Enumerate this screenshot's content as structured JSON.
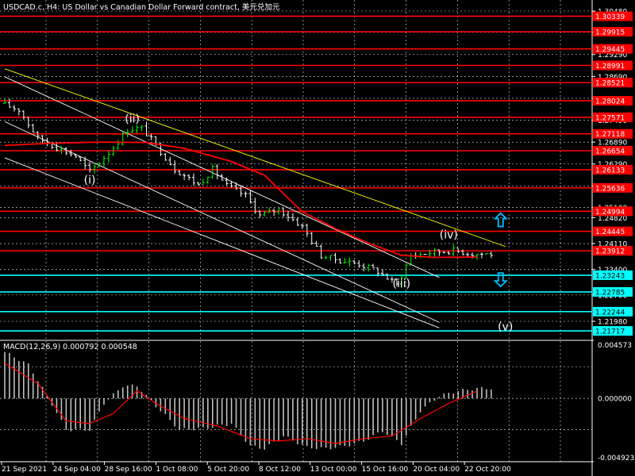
{
  "window": {
    "title": "USDCAD.c, H4:  US Dollar vs Canadian Dollar Forward contract, 美元兑加元"
  },
  "colors": {
    "background": "#000000",
    "grid": "#ffffff",
    "bull_bar": "#00ff00",
    "bear_bar": "#ffffff",
    "ma_line": "#ff0000",
    "level_red": "#ff0000",
    "level_cyan": "#00ffff",
    "channel": "#ffffff",
    "trendline": "#ffff00",
    "macd_hist": "#c0c0c0",
    "macd_signal": "#ff0000",
    "arrow": "#00bfff",
    "text": "#ffffff"
  },
  "chart_data": [
    {
      "type": "candlestick",
      "ylim": [
        1.2148,
        1.3048
      ],
      "y_ticks": [
        "1.30480",
        "1.29900",
        "1.29290",
        "1.28690",
        "1.28090",
        "1.27490",
        "1.26890",
        "1.26290",
        "1.25690",
        "1.25100",
        "1.24820",
        "1.24110",
        "1.23400",
        "1.22700",
        "1.21980"
      ],
      "price_levels": [
        {
          "label": "1.30339",
          "value": 1.30339,
          "color": "red"
        },
        {
          "label": "1.29915",
          "value": 1.29915,
          "color": "red"
        },
        {
          "label": "1.29445",
          "value": 1.29445,
          "color": "red"
        },
        {
          "label": "1.28991",
          "value": 1.28991,
          "color": "red"
        },
        {
          "label": "1.28521",
          "value": 1.28521,
          "color": "red"
        },
        {
          "label": "1.28024",
          "value": 1.28024,
          "color": "red"
        },
        {
          "label": "1.27571",
          "value": 1.27571,
          "color": "red"
        },
        {
          "label": "1.27118",
          "value": 1.27118,
          "color": "red"
        },
        {
          "label": "1.26654",
          "value": 1.26654,
          "color": "red"
        },
        {
          "label": "1.26133",
          "value": 1.26133,
          "color": "red"
        },
        {
          "label": "1.25636",
          "value": 1.25636,
          "color": "red"
        },
        {
          "label": "1.24994",
          "value": 1.24994,
          "color": "red"
        },
        {
          "label": "1.24445",
          "value": 1.24445,
          "color": "red"
        },
        {
          "label": "1.23912",
          "value": 1.23912,
          "color": "red"
        },
        {
          "label": "1.23243",
          "value": 1.23243,
          "color": "cyan"
        },
        {
          "label": "1.22785",
          "value": 1.22785,
          "color": "cyan"
        },
        {
          "label": "1.22244",
          "value": 1.22244,
          "color": "cyan"
        },
        {
          "label": "1.21717",
          "value": 1.21717,
          "color": "cyan"
        }
      ],
      "wave_labels": [
        {
          "label": "(i)",
          "bar": 18,
          "price": 1.2575
        },
        {
          "label": "(ii)",
          "bar": 27,
          "price": 1.2743
        },
        {
          "label": "(iii)",
          "bar": 84,
          "price": 1.2291
        },
        {
          "label": "(iv)",
          "bar": 94,
          "price": 1.2425
        },
        {
          "label": "(v)",
          "bar": 106,
          "price": 1.2173
        }
      ],
      "ma_path": [
        [
          0,
          1.268
        ],
        [
          10,
          1.2686
        ],
        [
          20,
          1.2689
        ],
        [
          30,
          1.2688
        ],
        [
          38,
          1.2672
        ],
        [
          48,
          1.2636
        ],
        [
          55,
          1.2598
        ],
        [
          63,
          1.2498
        ],
        [
          70,
          1.2452
        ],
        [
          77,
          1.2412
        ],
        [
          84,
          1.2379
        ],
        [
          91,
          1.2373
        ],
        [
          100,
          1.2374
        ]
      ],
      "trendline": [
        [
          0,
          1.289
        ],
        [
          106,
          1.2403
        ]
      ],
      "channel_upper": [
        [
          0,
          1.2868
        ],
        [
          92,
          1.2318
        ]
      ],
      "channel_mid": [
        [
          0,
          1.2745
        ],
        [
          92,
          1.2195
        ]
      ],
      "channel_lower": [
        [
          0,
          1.2646
        ],
        [
          92,
          1.218
        ]
      ],
      "arrows": [
        {
          "direction": "up",
          "bar": 105,
          "price": 1.2475
        },
        {
          "direction": "down",
          "bar": 105,
          "price": 1.2313
        }
      ],
      "anchors": [
        [
          0,
          1.2795
        ],
        [
          4,
          1.2778
        ],
        [
          8,
          1.27
        ],
        [
          12,
          1.2675
        ],
        [
          16,
          1.265
        ],
        [
          19,
          1.2608
        ],
        [
          23,
          1.266
        ],
        [
          27,
          1.2723
        ],
        [
          30,
          1.2728
        ],
        [
          33,
          1.268
        ],
        [
          37,
          1.2615
        ],
        [
          42,
          1.2572
        ],
        [
          45,
          1.2615
        ],
        [
          48,
          1.257
        ],
        [
          52,
          1.2542
        ],
        [
          55,
          1.2488
        ],
        [
          59,
          1.2505
        ],
        [
          64,
          1.2458
        ],
        [
          68,
          1.2378
        ],
        [
          72,
          1.2365
        ],
        [
          76,
          1.2355
        ],
        [
          80,
          1.2335
        ],
        [
          84,
          1.2298
        ],
        [
          87,
          1.2378
        ],
        [
          92,
          1.2388
        ],
        [
          96,
          1.2392
        ],
        [
          100,
          1.2383
        ]
      ]
    },
    {
      "type": "bar",
      "title": "MACD(12,26,9) 0.000792 0.000548",
      "ylim": [
        -0.004923,
        0.004573
      ],
      "y_ticks": [
        "0.004573",
        "0.000000",
        "-0.004923"
      ],
      "hist_path": [
        [
          0,
          0.0037
        ],
        [
          5,
          0.0027
        ],
        [
          9,
          0.0002
        ],
        [
          13,
          -0.0025
        ],
        [
          18,
          -0.0025
        ],
        [
          21,
          -0.0004
        ],
        [
          25,
          0.001
        ],
        [
          28,
          0.001
        ],
        [
          32,
          -0.0006
        ],
        [
          37,
          -0.0025
        ],
        [
          42,
          -0.0024
        ],
        [
          48,
          -0.002
        ],
        [
          52,
          -0.0038
        ],
        [
          55,
          -0.004
        ],
        [
          59,
          -0.003
        ],
        [
          64,
          -0.0039
        ],
        [
          68,
          -0.004
        ],
        [
          72,
          -0.0038
        ],
        [
          76,
          -0.0034
        ],
        [
          80,
          -0.0026
        ],
        [
          84,
          -0.0036
        ],
        [
          88,
          -0.001
        ],
        [
          92,
          0.0002
        ],
        [
          96,
          0.0006
        ],
        [
          100,
          0.0008
        ]
      ],
      "signal_path": [
        [
          0,
          0.0028
        ],
        [
          7,
          0.0012
        ],
        [
          13,
          -0.0018
        ],
        [
          18,
          -0.002
        ],
        [
          23,
          -0.0012
        ],
        [
          28,
          0.0006
        ],
        [
          32,
          -0.0004
        ],
        [
          38,
          -0.0016
        ],
        [
          45,
          -0.0022
        ],
        [
          52,
          -0.0032
        ],
        [
          58,
          -0.0034
        ],
        [
          64,
          -0.0032
        ],
        [
          70,
          -0.0036
        ],
        [
          76,
          -0.0032
        ],
        [
          82,
          -0.003
        ],
        [
          88,
          -0.0016
        ],
        [
          94,
          -0.0004
        ],
        [
          100,
          0.0006
        ]
      ]
    }
  ],
  "time_labels": [
    "21 Sep 2021",
    "24 Sep 04:00",
    "28 Sep 16:00",
    "1 Oct 08:00",
    "5 Oct 20:00",
    "8 Oct 12:00",
    "13 Oct 00:00",
    "15 Oct 16:00",
    "20 Oct 04:00",
    "22 Oct 20:00"
  ]
}
